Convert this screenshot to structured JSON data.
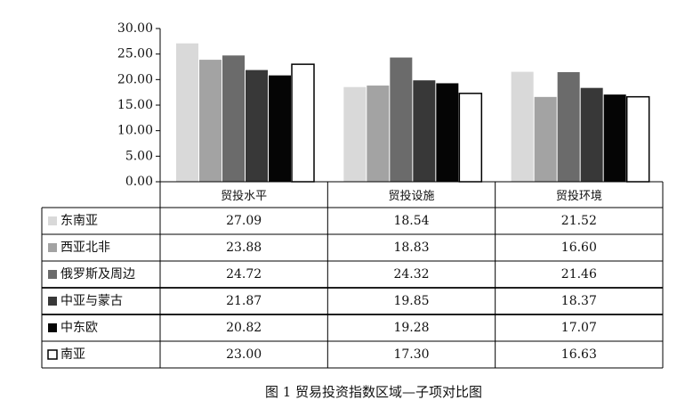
{
  "chart_data": {
    "type": "bar",
    "categories": [
      "贸投水平",
      "贸投设施",
      "贸投环境"
    ],
    "series": [
      {
        "name": "东南亚",
        "color": "#d9d9d9",
        "values": [
          27.09,
          18.54,
          21.52
        ],
        "value_labels": [
          "27.09",
          "18.54",
          "21.52"
        ]
      },
      {
        "name": "西亚北非",
        "color": "#a3a3a3",
        "values": [
          23.88,
          18.83,
          16.6
        ],
        "value_labels": [
          "23.88",
          "18.83",
          "16.60"
        ]
      },
      {
        "name": "俄罗斯及周边",
        "color": "#6b6b6b",
        "values": [
          24.72,
          24.32,
          21.46
        ],
        "value_labels": [
          "24.72",
          "24.32",
          "21.46"
        ]
      },
      {
        "name": "中亚与蒙古",
        "color": "#383838",
        "values": [
          21.87,
          19.85,
          18.37
        ],
        "value_labels": [
          "21.87",
          "19.85",
          "18.37"
        ]
      },
      {
        "name": "中东欧",
        "color": "#050505",
        "values": [
          20.82,
          19.28,
          17.07
        ],
        "value_labels": [
          "20.82",
          "19.28",
          "17.07"
        ]
      },
      {
        "name": "南亚",
        "color": "#ffffff",
        "values": [
          23,
          17.3,
          16.63
        ],
        "value_labels": [
          "23.00",
          "17.30",
          "16.63"
        ]
      }
    ],
    "ylim": [
      0,
      30
    ],
    "yticks": [
      {
        "value": 0,
        "label": "0.00"
      },
      {
        "value": 5,
        "label": "5.00"
      },
      {
        "value": 10,
        "label": "10.00"
      },
      {
        "value": 15,
        "label": "15.00"
      },
      {
        "value": 20,
        "label": "20.00"
      },
      {
        "value": 25,
        "label": "25.00"
      },
      {
        "value": 30,
        "label": "30.00"
      }
    ],
    "caption": "图 1 贸易投资指数区域—子项对比图"
  }
}
